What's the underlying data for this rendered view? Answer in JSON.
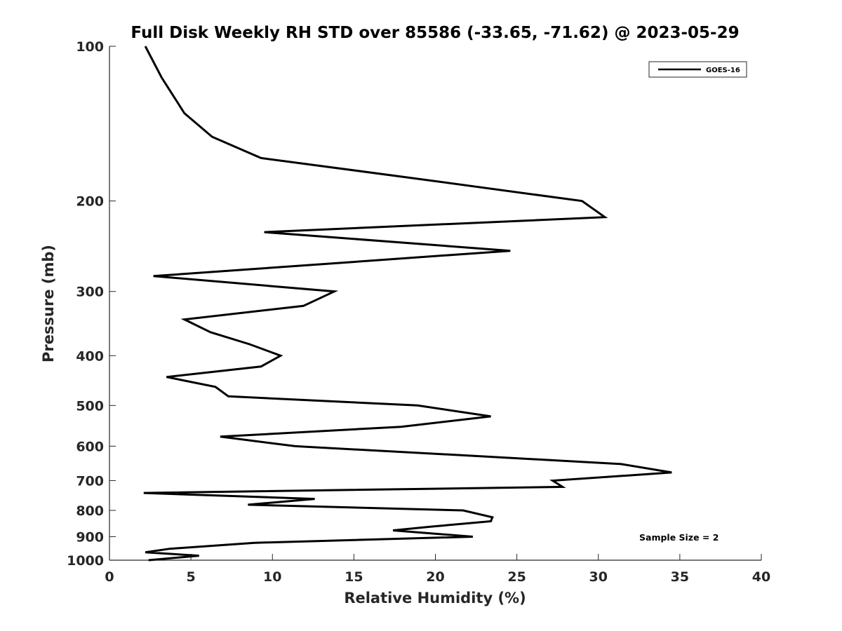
{
  "chart_data": {
    "type": "line",
    "title": "Full Disk Weekly RH STD over 85586 (-33.65, -71.62) @ 2023-05-29",
    "xlabel": "Relative Humidity (%)",
    "ylabel": "Pressure (mb)",
    "xlim": [
      0,
      40
    ],
    "ylim": [
      100,
      1000
    ],
    "y_scale": "log",
    "y_reversed": true,
    "x_ticks": [
      "0",
      "5",
      "10",
      "15",
      "20",
      "25",
      "30",
      "35",
      "40"
    ],
    "y_ticks": [
      "100",
      "200",
      "300",
      "400",
      "500",
      "600",
      "700",
      "800",
      "900",
      "1000"
    ],
    "grid": false,
    "legend_position": "top-right",
    "series": [
      {
        "name": "GOES-16",
        "color": "#000000",
        "points": [
          [
            2.2,
            100
          ],
          [
            3.2,
            115
          ],
          [
            4.6,
            135
          ],
          [
            6.3,
            150
          ],
          [
            9.3,
            165
          ],
          [
            18.3,
            180
          ],
          [
            29.0,
            200
          ],
          [
            30.4,
            215
          ],
          [
            9.5,
            230
          ],
          [
            24.6,
            250
          ],
          [
            2.7,
            280
          ],
          [
            13.8,
            300
          ],
          [
            11.9,
            320
          ],
          [
            4.6,
            340
          ],
          [
            6.2,
            360
          ],
          [
            8.6,
            380
          ],
          [
            10.5,
            400
          ],
          [
            9.3,
            420
          ],
          [
            3.5,
            440
          ],
          [
            6.5,
            460
          ],
          [
            7.3,
            480
          ],
          [
            18.9,
            500
          ],
          [
            23.4,
            525
          ],
          [
            17.9,
            550
          ],
          [
            6.8,
            575
          ],
          [
            11.4,
            600
          ],
          [
            21.7,
            625
          ],
          [
            31.4,
            650
          ],
          [
            34.5,
            675
          ],
          [
            27.2,
            700
          ],
          [
            27.8,
            720
          ],
          [
            2.1,
            740
          ],
          [
            12.6,
            760
          ],
          [
            8.5,
            780
          ],
          [
            21.7,
            800
          ],
          [
            23.5,
            825
          ],
          [
            23.4,
            840
          ],
          [
            19.8,
            860
          ],
          [
            17.4,
            875
          ],
          [
            22.3,
            900
          ],
          [
            8.9,
            925
          ],
          [
            3.7,
            950
          ],
          [
            2.2,
            965
          ],
          [
            5.5,
            980
          ],
          [
            2.4,
            1000
          ]
        ]
      }
    ],
    "annotations": [
      "Sample Size = 2"
    ]
  }
}
